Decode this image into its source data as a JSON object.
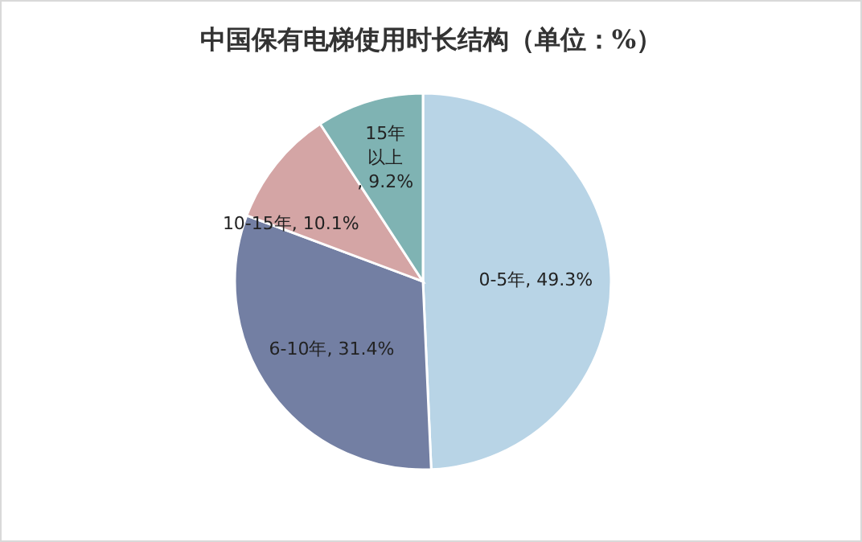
{
  "chart_data": {
    "type": "pie",
    "title": "中国保有电梯使用时长结构（单位：%）",
    "categories": [
      "0-5年",
      "6-10年",
      "10-15年",
      "15年以上"
    ],
    "values": [
      49.3,
      31.4,
      10.1,
      9.2
    ],
    "value_labels": [
      ", 49.3%",
      ", 31.4%",
      ", 10.1%",
      ", 9.2%"
    ],
    "colors": [
      "#b8d4e6",
      "#737fa3",
      "#d4a5a5",
      "#7fb3b3"
    ]
  }
}
